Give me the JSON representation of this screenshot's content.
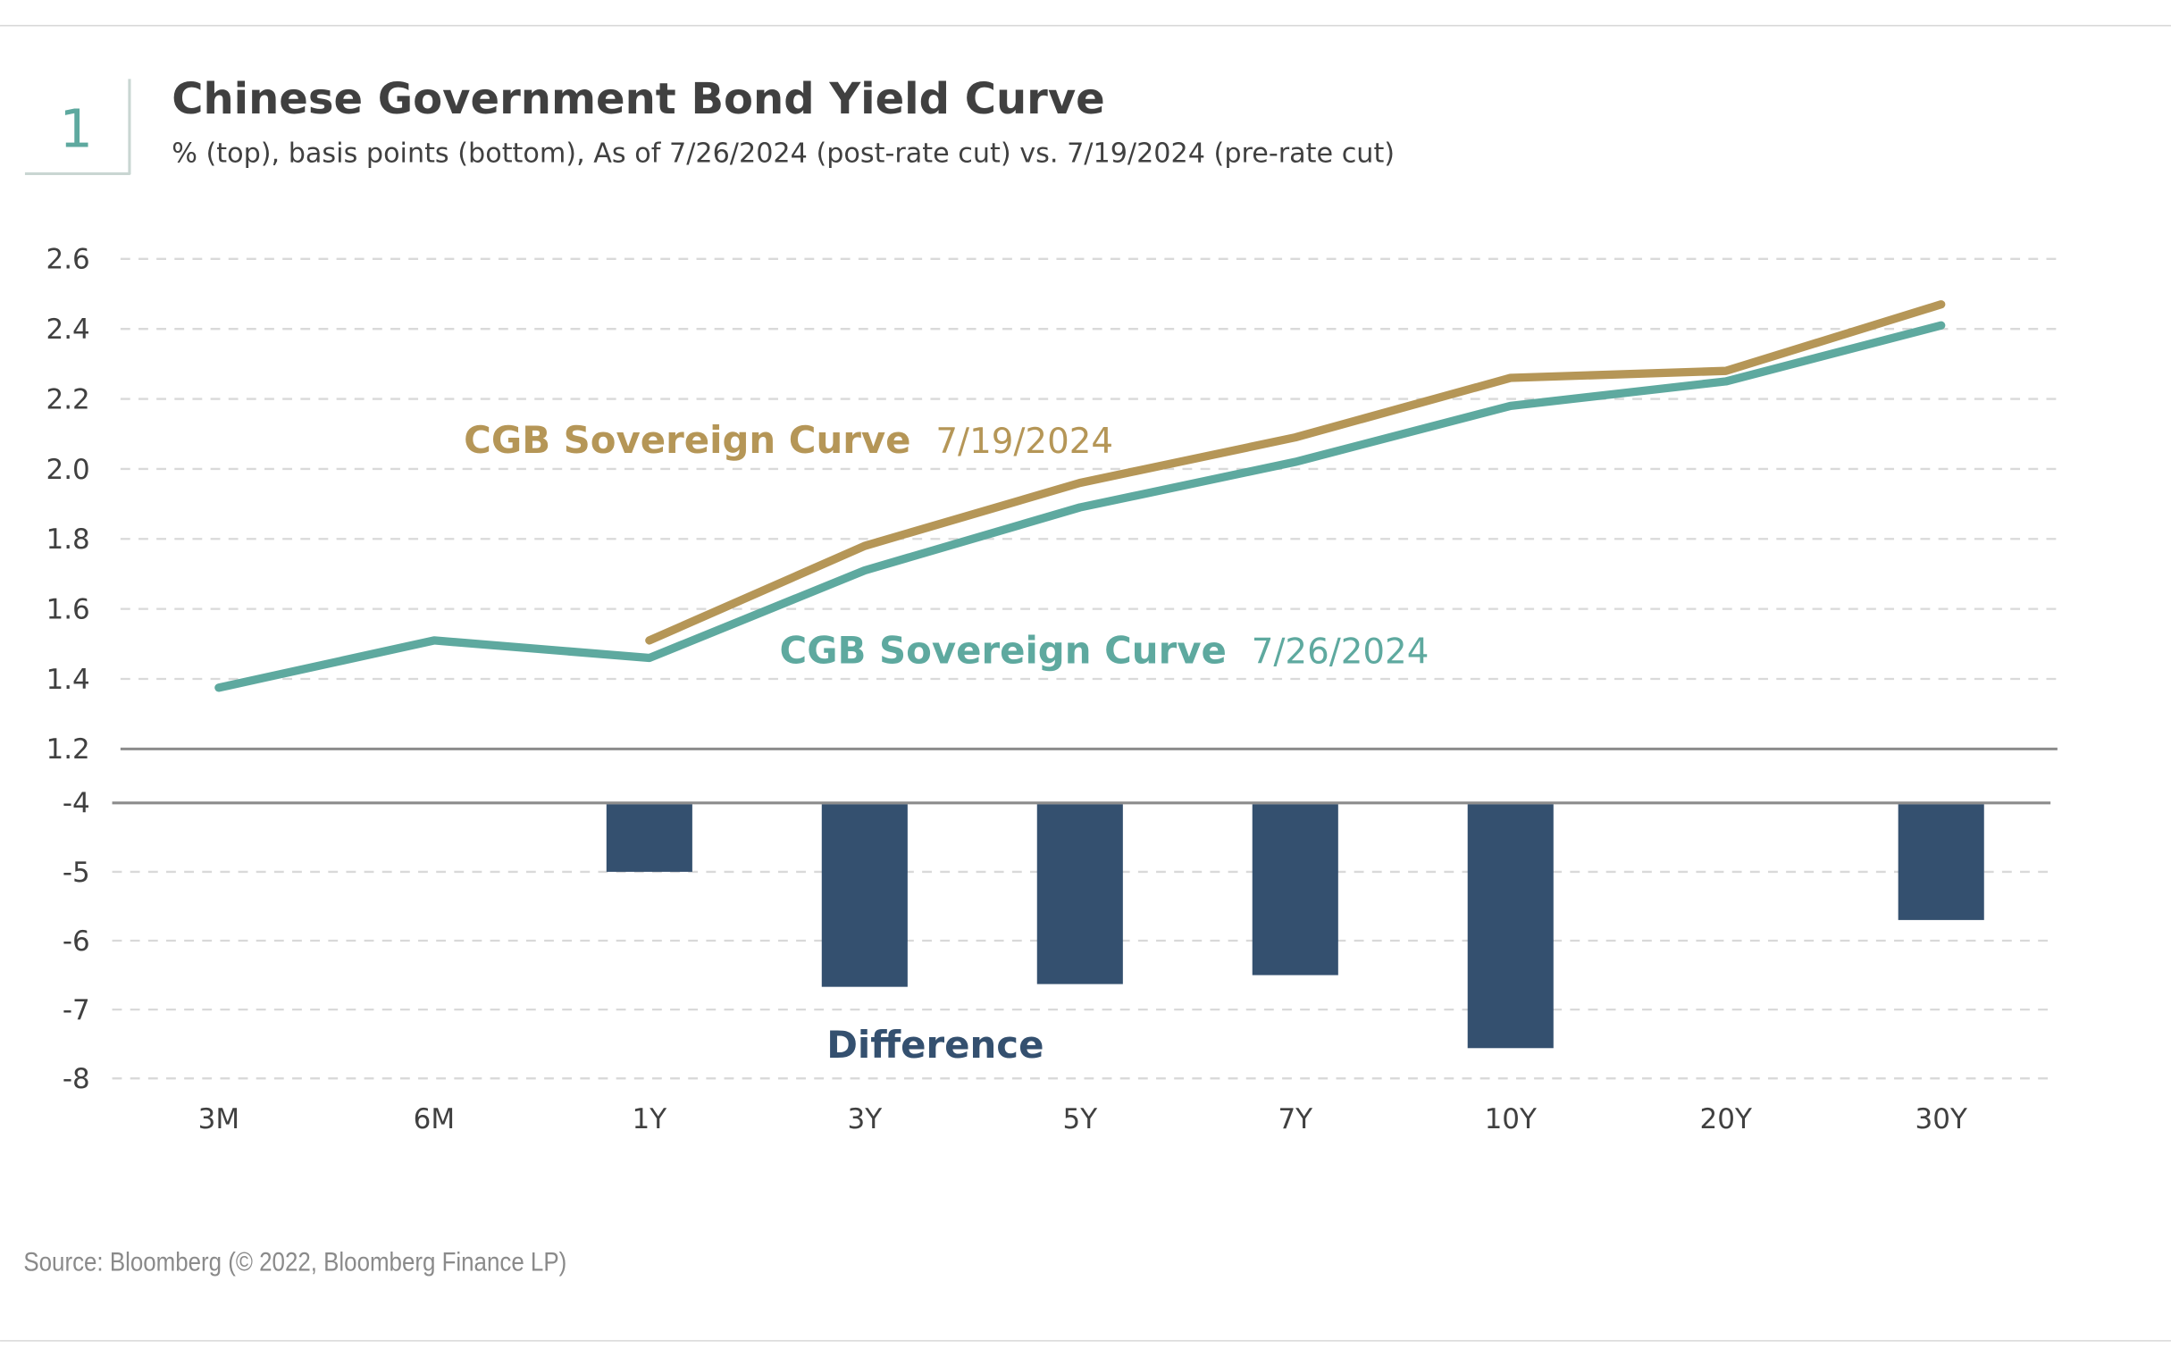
{
  "figure_number": "1",
  "title": "Chinese Government Bond Yield Curve",
  "subtitle": "% (top), basis points (bottom), As of 7/26/2024 (post-rate cut) vs. 7/19/2024 (pre-rate cut)",
  "source": "Source: Bloomberg (© 2022, Bloomberg Finance LP)",
  "colors": {
    "pre": "#b59657",
    "post": "#5ea99f",
    "bars": "#34506f",
    "accent": "#5ea99f"
  },
  "chart_data": [
    {
      "type": "line",
      "categories": [
        "3M",
        "6M",
        "1Y",
        "3Y",
        "5Y",
        "7Y",
        "10Y",
        "20Y",
        "30Y"
      ],
      "ylabel": "%",
      "ylim": [
        1.2,
        2.6
      ],
      "yticks": [
        "2.6",
        "2.4",
        "2.2",
        "2.0",
        "1.8",
        "1.6",
        "1.4",
        "1.2"
      ],
      "grid": true,
      "series": [
        {
          "name": "CGB Sovereign Curve",
          "date": "7/19/2024",
          "values": [
            null,
            null,
            1.51,
            1.78,
            1.96,
            2.09,
            2.26,
            2.28,
            2.47
          ]
        },
        {
          "name": "CGB Sovereign Curve",
          "date": "7/26/2024",
          "values": [
            1.375,
            1.51,
            1.46,
            1.71,
            1.89,
            2.02,
            2.18,
            2.25,
            2.41
          ]
        }
      ]
    },
    {
      "type": "bar",
      "categories": [
        "3M",
        "6M",
        "1Y",
        "3Y",
        "5Y",
        "7Y",
        "10Y",
        "20Y",
        "30Y"
      ],
      "ylabel": "basis points",
      "ylim": [
        -8,
        -4
      ],
      "yticks": [
        "-4",
        "-5",
        "-6",
        "-7",
        "-8"
      ],
      "grid": true,
      "series": [
        {
          "name": "Difference",
          "values": [
            null,
            null,
            -5.0,
            -6.67,
            -6.63,
            -6.5,
            -7.56,
            null,
            -5.7
          ]
        }
      ]
    }
  ]
}
